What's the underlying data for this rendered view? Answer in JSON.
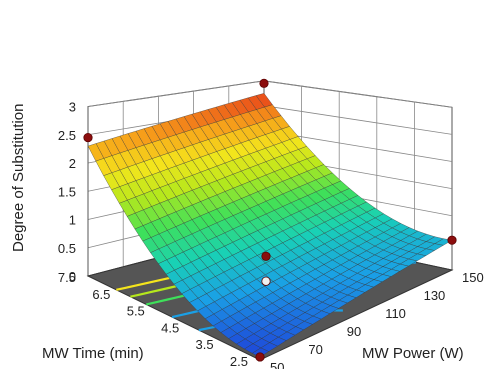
{
  "chart_data": {
    "type": "surface",
    "zlabel": "Degree of Substitution",
    "xlabel": "MW Time (min)",
    "ylabel": "MW Power (W)",
    "x_ticks": [
      "2.5",
      "3.5",
      "4.5",
      "5.5",
      "6.5",
      "7.5"
    ],
    "y_ticks": [
      "50",
      "70",
      "90",
      "110",
      "130",
      "150"
    ],
    "z_ticks": [
      "0",
      "0.5",
      "1",
      "1.5",
      "2",
      "2.5",
      "3"
    ],
    "xlim": [
      2.5,
      7.5
    ],
    "ylim": [
      50,
      150
    ],
    "zlim": [
      0,
      3
    ],
    "surface_corners": {
      "time_7.5_power_50": 2.45,
      "time_7.5_power_150": 2.9,
      "time_2.5_power_50": 0.05,
      "time_2.5_power_150": 0.55,
      "minimum_near": {
        "time": 3.5,
        "power": 60,
        "ds": -0.05
      }
    },
    "design_points": [
      {
        "time": 7.5,
        "power": 50,
        "ds": 2.45
      },
      {
        "time": 7.5,
        "power": 150,
        "ds": 2.95
      },
      {
        "time": 2.5,
        "power": 150,
        "ds": 0.55
      },
      {
        "time": 5.0,
        "power": 100,
        "ds": 0.5
      },
      {
        "time": 5.0,
        "power": 100,
        "ds": 0.05
      },
      {
        "time": 2.5,
        "power": 50,
        "ds": 0.05
      }
    ],
    "colormap": [
      "#1f3fd8",
      "#1aa0e6",
      "#19d1b5",
      "#3ee05a",
      "#b6e81c",
      "#f4e51c",
      "#f7a21a",
      "#e8421a"
    ],
    "floor_color": "#555555",
    "grid": true
  }
}
